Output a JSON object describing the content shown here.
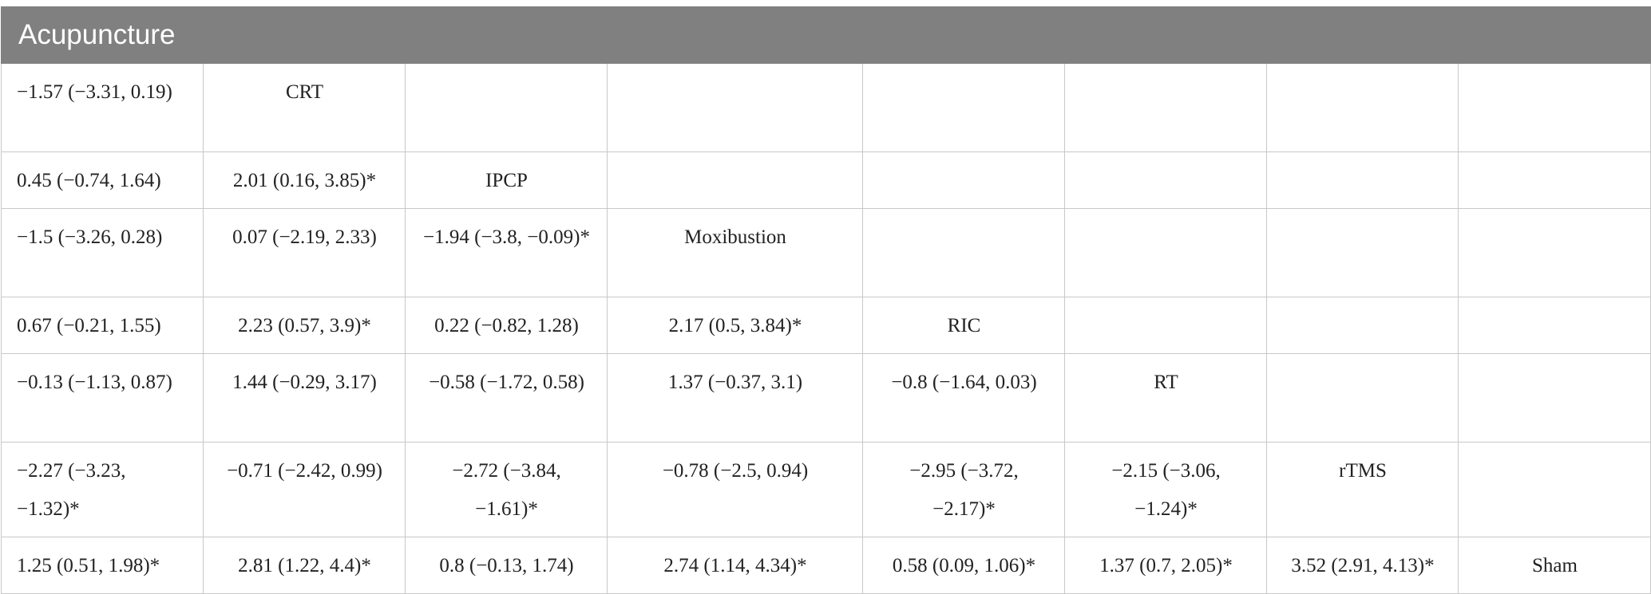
{
  "title": "Acupuncture",
  "rows": [
    [
      "−1.57 (−3.31, 0.19)",
      "CRT",
      "",
      "",
      "",
      "",
      "",
      ""
    ],
    [
      "0.45 (−0.74, 1.64)",
      "2.01 (0.16, 3.85)*",
      "IPCP",
      "",
      "",
      "",
      "",
      ""
    ],
    [
      "−1.5 (−3.26, 0.28)",
      "0.07 (−2.19, 2.33)",
      "−1.94 (−3.8, −0.09)*",
      "Moxibustion",
      "",
      "",
      "",
      ""
    ],
    [
      "0.67 (−0.21, 1.55)",
      "2.23 (0.57, 3.9)*",
      "0.22 (−0.82, 1.28)",
      "2.17 (0.5, 3.84)*",
      "RIC",
      "",
      "",
      ""
    ],
    [
      "−0.13 (−1.13, 0.87)",
      "1.44 (−0.29, 3.17)",
      "−0.58 (−1.72, 0.58)",
      "1.37 (−0.37, 3.1)",
      "−0.8 (−1.64, 0.03)",
      "RT",
      "",
      ""
    ],
    [
      "−2.27 (−3.23, −1.32)*",
      "−0.71 (−2.42, 0.99)",
      "−2.72 (−3.84, −1.61)*",
      "−0.78 (−2.5, 0.94)",
      "−2.95 (−3.72, −2.17)*",
      "−2.15 (−3.06, −1.24)*",
      "rTMS",
      ""
    ],
    [
      "1.25 (0.51, 1.98)*",
      "2.81 (1.22, 4.4)*",
      "0.8 (−0.13, 1.74)",
      "2.74 (1.14, 4.34)*",
      "0.58 (0.09, 1.06)*",
      "1.37 (0.7, 2.05)*",
      "3.52 (2.91, 4.13)*",
      "Sham"
    ]
  ]
}
